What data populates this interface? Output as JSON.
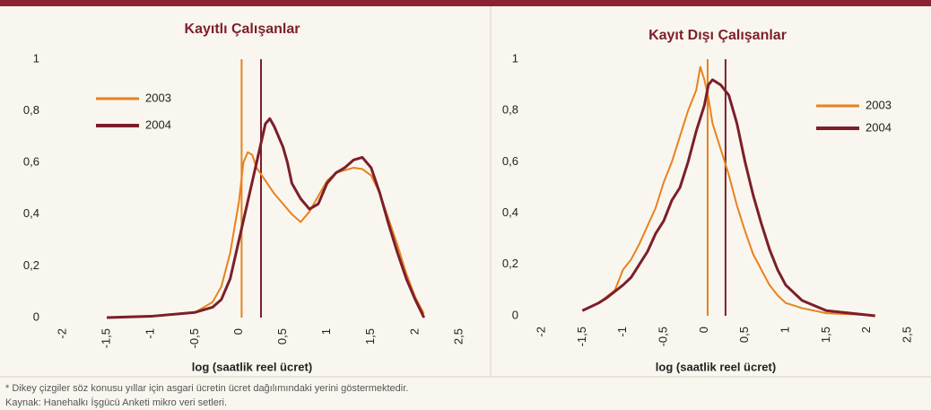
{
  "chart_data": [
    {
      "type": "line",
      "title": "Kayıtlı Çalışanlar",
      "xlabel": "log (saatlik reel ücret)",
      "xlim": [
        -2,
        2.5
      ],
      "ylim": [
        0,
        1
      ],
      "xticks": [
        -2,
        {
          "value": -1.5,
          "label": "-1,5"
        },
        -1,
        {
          "value": -0.5,
          "label": "-0,5"
        },
        0,
        {
          "value": 0.5,
          "label": "0,5"
        },
        1,
        {
          "value": 1.5,
          "label": "1,5"
        },
        2,
        {
          "value": 2.5,
          "label": "2,5"
        }
      ],
      "yticks": [
        0,
        {
          "value": 0.2,
          "label": "0,2"
        },
        {
          "value": 0.4,
          "label": "0,4"
        },
        {
          "value": 0.6,
          "label": "0,6"
        },
        {
          "value": 0.8,
          "label": "0,8"
        },
        1
      ],
      "legend": "upper left",
      "vlines": [
        {
          "x": 0.03,
          "color": "#e8821e"
        },
        {
          "x": 0.25,
          "color": "#7b1f2a"
        }
      ],
      "series": [
        {
          "name": "2003",
          "color": "#e8821e",
          "width": 2,
          "x": [
            -1.5,
            -1,
            -0.5,
            -0.3,
            -0.2,
            -0.1,
            0,
            0.05,
            0.1,
            0.15,
            0.2,
            0.3,
            0.4,
            0.5,
            0.6,
            0.7,
            0.8,
            0.9,
            1.0,
            1.1,
            1.2,
            1.3,
            1.4,
            1.5,
            1.6,
            1.7,
            1.8,
            1.9,
            2.0,
            2.1
          ],
          "values": [
            0,
            0.005,
            0.02,
            0.06,
            0.12,
            0.25,
            0.45,
            0.6,
            0.64,
            0.63,
            0.58,
            0.53,
            0.48,
            0.44,
            0.4,
            0.37,
            0.41,
            0.47,
            0.53,
            0.56,
            0.57,
            0.58,
            0.575,
            0.55,
            0.48,
            0.38,
            0.28,
            0.17,
            0.08,
            0.015
          ]
        },
        {
          "name": "2004",
          "color": "#7b1f2a",
          "width": 3,
          "x": [
            -1.5,
            -1,
            -0.5,
            -0.3,
            -0.2,
            -0.1,
            0,
            0.1,
            0.2,
            0.3,
            0.35,
            0.4,
            0.5,
            0.55,
            0.6,
            0.7,
            0.8,
            0.9,
            1.0,
            1.1,
            1.2,
            1.3,
            1.4,
            1.5,
            1.6,
            1.7,
            1.8,
            1.9,
            2.0,
            2.1
          ],
          "values": [
            0,
            0.005,
            0.02,
            0.04,
            0.07,
            0.15,
            0.3,
            0.45,
            0.6,
            0.75,
            0.77,
            0.74,
            0.66,
            0.6,
            0.52,
            0.46,
            0.42,
            0.44,
            0.52,
            0.56,
            0.58,
            0.61,
            0.62,
            0.58,
            0.48,
            0.36,
            0.25,
            0.15,
            0.07,
            0
          ]
        }
      ]
    },
    {
      "type": "line",
      "title": "Kayıt Dışı Çalışanlar",
      "xlabel": "log (saatlik reel ücret)",
      "xlim": [
        -2,
        2.5
      ],
      "ylim": [
        0,
        1
      ],
      "xticks": [
        -2,
        {
          "value": -1.5,
          "label": "-1,5"
        },
        -1,
        {
          "value": -0.5,
          "label": "-0,5"
        },
        0,
        {
          "value": 0.5,
          "label": "0,5"
        },
        1,
        {
          "value": 1.5,
          "label": "1,5"
        },
        2,
        {
          "value": 2.5,
          "label": "2,5"
        }
      ],
      "yticks": [
        0,
        {
          "value": 0.2,
          "label": "0,2"
        },
        {
          "value": 0.4,
          "label": "0,4"
        },
        {
          "value": 0.6,
          "label": "0,6"
        },
        {
          "value": 0.8,
          "label": "0,8"
        },
        1
      ],
      "legend": "upper right",
      "vlines": [
        {
          "x": 0.04,
          "color": "#e8821e"
        },
        {
          "x": 0.26,
          "color": "#7b1f2a"
        }
      ],
      "series": [
        {
          "name": "2003",
          "color": "#e8821e",
          "width": 2,
          "x": [
            -1.5,
            -1.3,
            -1.1,
            -1,
            -0.9,
            -0.8,
            -0.7,
            -0.6,
            -0.5,
            -0.4,
            -0.3,
            -0.2,
            -0.1,
            -0.05,
            0,
            0.05,
            0.1,
            0.2,
            0.3,
            0.4,
            0.5,
            0.6,
            0.7,
            0.8,
            0.9,
            1.0,
            1.2,
            1.5,
            2.0
          ],
          "values": [
            0.02,
            0.05,
            0.1,
            0.18,
            0.22,
            0.28,
            0.35,
            0.42,
            0.52,
            0.6,
            0.7,
            0.8,
            0.88,
            0.97,
            0.92,
            0.85,
            0.75,
            0.65,
            0.55,
            0.43,
            0.33,
            0.24,
            0.18,
            0.12,
            0.08,
            0.05,
            0.03,
            0.01,
            0.003
          ]
        },
        {
          "name": "2004",
          "color": "#7b1f2a",
          "width": 3,
          "x": [
            -1.5,
            -1.3,
            -1.2,
            -1,
            -0.9,
            -0.8,
            -0.7,
            -0.6,
            -0.5,
            -0.4,
            -0.3,
            -0.2,
            -0.1,
            0,
            0.05,
            0.1,
            0.2,
            0.3,
            0.4,
            0.5,
            0.6,
            0.7,
            0.8,
            0.9,
            1.0,
            1.2,
            1.5,
            1.8,
            2.1
          ],
          "values": [
            0.02,
            0.05,
            0.07,
            0.12,
            0.15,
            0.2,
            0.25,
            0.32,
            0.37,
            0.45,
            0.5,
            0.6,
            0.72,
            0.82,
            0.9,
            0.92,
            0.9,
            0.86,
            0.75,
            0.6,
            0.47,
            0.36,
            0.26,
            0.18,
            0.12,
            0.06,
            0.02,
            0.01,
            0
          ]
        }
      ]
    }
  ],
  "footnotes": [
    "* Dikey çizgiler söz konusu yıllar için asgari ücretin ücret dağılımındaki yerini göstermektedir.",
    "Kaynak: Hanehalkı İşgücü Anketi mikro veri setleri."
  ]
}
